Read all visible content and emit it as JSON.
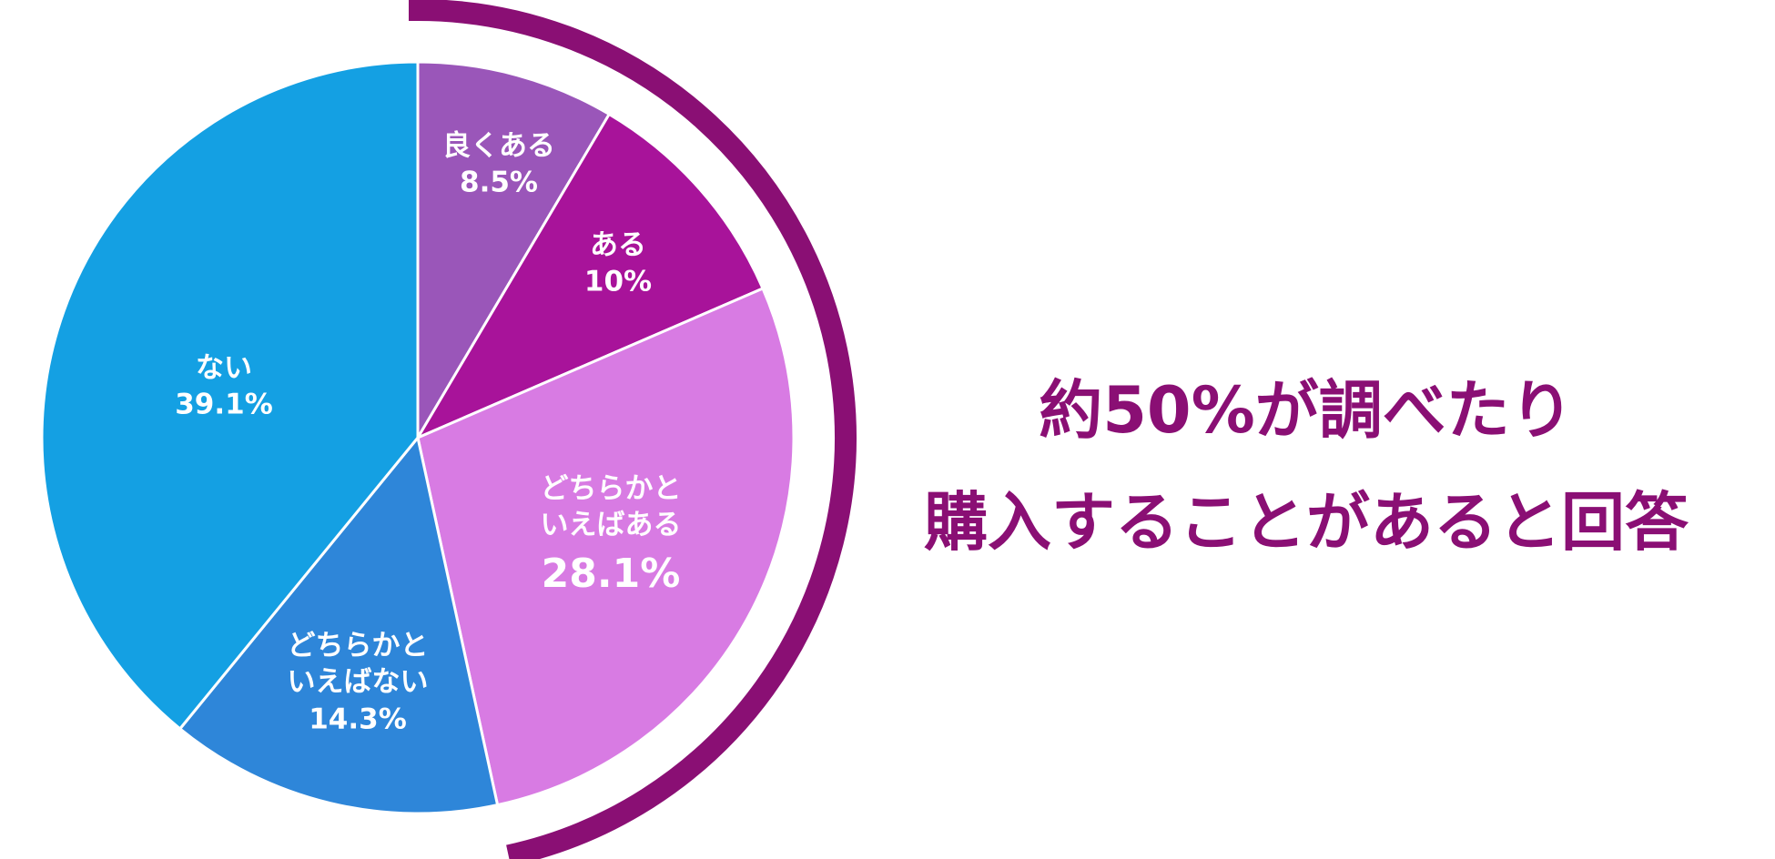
{
  "chart_data": {
    "type": "pie",
    "categories": [
      "良くある",
      "ある",
      "どちらかといえばある",
      "どちらかといえばない",
      "ない"
    ],
    "values": [
      8.5,
      10,
      28.1,
      14.3,
      39.1
    ],
    "value_labels": [
      "8.5%",
      "10%",
      "28.1%",
      "14.3%",
      "39.1%"
    ],
    "colors": [
      "#9a56b9",
      "#a8139a",
      "#d87be3",
      "#2e86d9",
      "#14a0e3"
    ],
    "highlight_color": "#8a0f74",
    "annotation": [
      "約50%が調べたり",
      "購入することがあると回答"
    ]
  }
}
